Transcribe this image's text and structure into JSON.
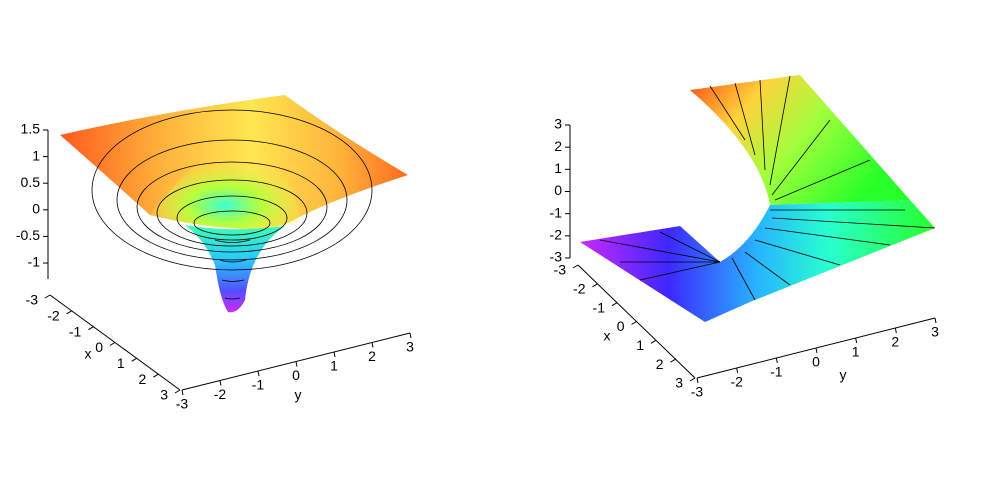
{
  "chart_data": [
    {
      "type": "surface3d",
      "xlabel": "x",
      "ylabel": "y",
      "xlim": [
        -3,
        3
      ],
      "xticks": [
        -3,
        -2,
        -1,
        0,
        1,
        2,
        3
      ],
      "ylim": [
        -3,
        3
      ],
      "yticks": [
        -3,
        -2,
        -1,
        0,
        1,
        2,
        3
      ],
      "zlim": [
        -1.3,
        1.5
      ],
      "zticks": [
        1.5,
        1,
        0.5,
        0,
        -0.5,
        -1
      ]
    },
    {
      "type": "surface3d",
      "xlabel": "x",
      "ylabel": "y",
      "xlim": [
        -3,
        3
      ],
      "xticks": [
        -3,
        -2,
        -1,
        0,
        1,
        2,
        3
      ],
      "ylim": [
        -3,
        3
      ],
      "yticks": [
        -3,
        -2,
        -1,
        0,
        1,
        2,
        3
      ],
      "zlim": [
        -3,
        3
      ],
      "zticks": [
        3,
        2,
        1,
        0,
        -1,
        -2,
        -3
      ]
    }
  ]
}
